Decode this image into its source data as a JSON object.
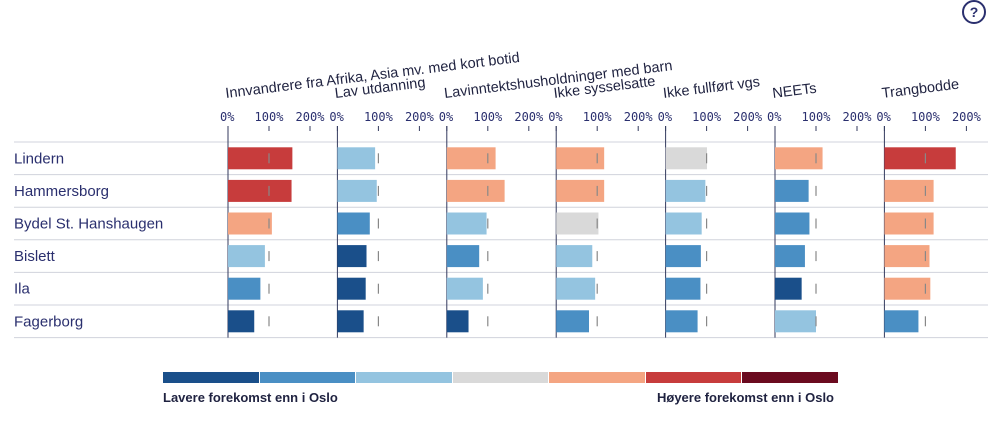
{
  "help_label": "?",
  "colors": {
    "dark_blue": "#1a4f8a",
    "mid_blue": "#4a8fc4",
    "light_blue": "#94c4e0",
    "grey": "#d9d9d9",
    "light_red": "#f4a582",
    "red": "#c73c3c",
    "dark_red": "#6b0a1f",
    "text": "#2a2f6e",
    "marker": "#888888"
  },
  "legend": {
    "scale": [
      "dark_blue",
      "mid_blue",
      "light_blue",
      "grey",
      "light_red",
      "red",
      "dark_red"
    ],
    "low_label": "Lavere forekomst enn i Oslo",
    "high_label": "Høyere forekomst enn i Oslo"
  },
  "chart_data": {
    "type": "bar",
    "orientation": "horizontal",
    "title": "",
    "xlim": [
      0,
      200
    ],
    "ticks": [
      "0%",
      "100%",
      "200%"
    ],
    "reference_value": 100,
    "categories": [
      "Lindern",
      "Hammersborg",
      "Bydel St. Hanshaugen",
      "Bislett",
      "Ila",
      "Fagerborg"
    ],
    "series": [
      {
        "name": "Innvandrere fra Afrika, Asia mv. med kort botid",
        "values": [
          157,
          155,
          107,
          90,
          79,
          64
        ],
        "colors": [
          "red",
          "red",
          "light_red",
          "light_blue",
          "mid_blue",
          "dark_blue"
        ]
      },
      {
        "name": "Lav utdanning",
        "values": [
          92,
          96,
          79,
          71,
          69,
          64
        ],
        "colors": [
          "light_blue",
          "light_blue",
          "mid_blue",
          "dark_blue",
          "dark_blue",
          "dark_blue"
        ]
      },
      {
        "name": "Lavinntektshusholdninger med barn",
        "values": [
          119,
          141,
          97,
          79,
          88,
          53
        ],
        "colors": [
          "light_red",
          "light_red",
          "light_blue",
          "mid_blue",
          "light_blue",
          "dark_blue"
        ]
      },
      {
        "name": "Ikke sysselsatte",
        "values": [
          117,
          117,
          103,
          88,
          95,
          80
        ],
        "colors": [
          "light_red",
          "light_red",
          "grey",
          "light_blue",
          "light_blue",
          "mid_blue"
        ]
      },
      {
        "name": "Ikke fullført vgs",
        "values": [
          101,
          97,
          88,
          86,
          85,
          78
        ],
        "colors": [
          "grey",
          "light_blue",
          "light_blue",
          "mid_blue",
          "mid_blue",
          "mid_blue"
        ]
      },
      {
        "name": "NEETs",
        "values": [
          116,
          82,
          84,
          73,
          65,
          100
        ],
        "colors": [
          "light_red",
          "mid_blue",
          "mid_blue",
          "mid_blue",
          "dark_blue",
          "light_blue"
        ]
      },
      {
        "name": "Trangbodde",
        "values": [
          174,
          120,
          120,
          110,
          112,
          83
        ],
        "colors": [
          "red",
          "light_red",
          "light_red",
          "light_red",
          "light_red",
          "mid_blue"
        ]
      }
    ]
  }
}
